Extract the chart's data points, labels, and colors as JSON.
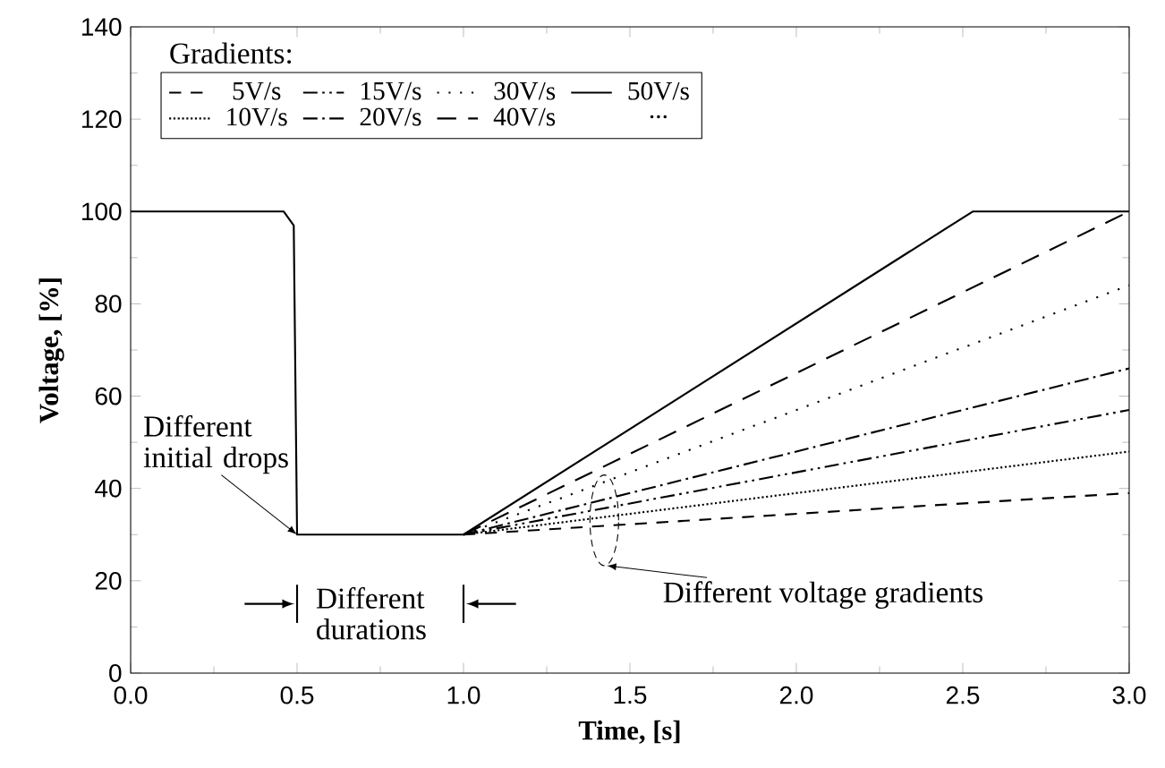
{
  "chart_data": {
    "type": "line",
    "xlabel": "Time, [s]",
    "ylabel": "Voltage, [%]",
    "legend_title": "Gradients:",
    "legend": "top",
    "grid": false,
    "xlim": [
      0,
      3
    ],
    "ylim": [
      0,
      140
    ],
    "xticks": [
      {
        "value": 0,
        "label": "0.0"
      },
      {
        "value": 0.5,
        "label": "0.5"
      },
      {
        "value": 1,
        "label": "1.0"
      },
      {
        "value": 1.5,
        "label": "1.5"
      },
      {
        "value": 2,
        "label": "2.0"
      },
      {
        "value": 2.5,
        "label": "2.5"
      },
      {
        "value": 3,
        "label": "3.0"
      }
    ],
    "yticks": [
      0,
      20,
      40,
      60,
      80,
      100,
      120,
      140
    ],
    "series": [
      {
        "name": "5V/s",
        "color": "#000000",
        "line_style": "dashed",
        "x": [
          1.0,
          3.0
        ],
        "values": [
          30,
          39
        ]
      },
      {
        "name": "10V/s",
        "color": "#000000",
        "line_style": "dotted",
        "x": [
          1.0,
          3.0
        ],
        "values": [
          30,
          48
        ]
      },
      {
        "name": "15V/s",
        "color": "#000000",
        "line_style": "dashdotdot",
        "x": [
          1.0,
          3.0
        ],
        "values": [
          30,
          57
        ]
      },
      {
        "name": "20V/s",
        "color": "#000000",
        "line_style": "dashdot",
        "x": [
          1.0,
          3.0
        ],
        "values": [
          30,
          66
        ]
      },
      {
        "name": "30V/s",
        "color": "#000000",
        "line_style": "loosely dotted",
        "x": [
          1.0,
          3.0
        ],
        "values": [
          30,
          84
        ]
      },
      {
        "name": "40V/s",
        "color": "#000000",
        "line_style": "long dashed",
        "x": [
          1.0,
          3.0
        ],
        "values": [
          30,
          100
        ]
      },
      {
        "name": "50V/s",
        "color": "#000000",
        "line_style": "solid",
        "x": [
          0,
          0.46,
          0.49,
          0.5,
          1.0,
          2.53,
          3.0
        ],
        "values": [
          100,
          100,
          97,
          30,
          30,
          100,
          100
        ]
      }
    ],
    "annotations": [
      {
        "text": "Different initial drops",
        "x": 0.5,
        "y": 30
      },
      "Different durations",
      "Different voltage gradients",
      "..."
    ]
  }
}
